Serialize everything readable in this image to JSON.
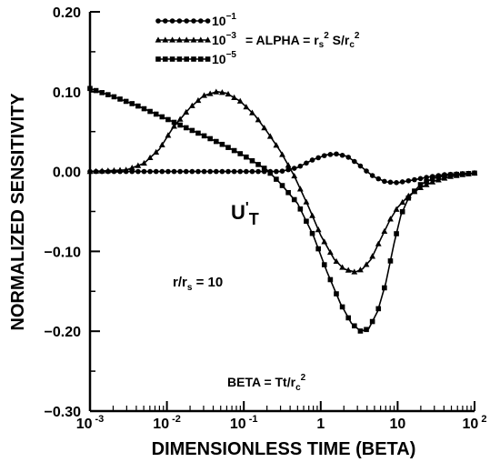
{
  "chart_data": {
    "type": "line",
    "title": "",
    "xlabel": "DIMENSIONLESS TIME (BETA)",
    "ylabel": "NORMALIZED SENSITIVITY",
    "x_scale": "log",
    "xlim": [
      0.001,
      100
    ],
    "ylim": [
      -0.3,
      0.2
    ],
    "grid": false,
    "legend_position": "top-center",
    "x_ticks": [
      {
        "value": 0.001,
        "base": "10",
        "exp": "-3"
      },
      {
        "value": 0.01,
        "base": "10",
        "exp": "-2"
      },
      {
        "value": 0.1,
        "base": "10",
        "exp": "-1"
      },
      {
        "value": 1,
        "base": "1",
        "exp": ""
      },
      {
        "value": 10,
        "base": "10",
        "exp": ""
      },
      {
        "value": 100,
        "base": "10",
        "exp": "2"
      }
    ],
    "y_ticks": [
      {
        "value": 0.2,
        "label": "0.20"
      },
      {
        "value": 0.1,
        "label": "0.10"
      },
      {
        "value": 0.0,
        "label": "0.00"
      },
      {
        "value": -0.1,
        "label": "−0.10"
      },
      {
        "value": -0.2,
        "label": "−0.20"
      },
      {
        "value": -0.3,
        "label": "−0.30"
      }
    ],
    "legend": {
      "entries": [
        {
          "base": "10",
          "exp": "−1",
          "marker": "circle"
        },
        {
          "base": "10",
          "exp": "−3",
          "marker": "triangle"
        },
        {
          "base": "10",
          "exp": "−5",
          "marker": "square"
        }
      ],
      "label": "= ALPHA = r",
      "label_sub": "s",
      "label_sup": "2",
      "label_mid": " S/r",
      "label_sub2": "c",
      "label_sup2": "2"
    },
    "annotations": {
      "curve_main": "U",
      "curve_prime": "'",
      "curve_sub": "T",
      "ratio_text": "r/r",
      "ratio_sub": "s",
      "ratio_value": " = 10",
      "beta_text": "BETA = Tt/r",
      "beta_sub": "c",
      "beta_sup": "2"
    },
    "series": [
      {
        "name": "10^-1",
        "marker": "circle",
        "points": [
          [
            0.001,
            0
          ],
          [
            0.01,
            0
          ],
          [
            0.1,
            0
          ],
          [
            0.3,
            0
          ],
          [
            0.5,
            0.005
          ],
          [
            0.8,
            0.015
          ],
          [
            1.2,
            0.021
          ],
          [
            1.6,
            0.022
          ],
          [
            2.2,
            0.019
          ],
          [
            3,
            0.01
          ],
          [
            4,
            0
          ],
          [
            5,
            -0.007
          ],
          [
            7,
            -0.013
          ],
          [
            10,
            -0.014
          ],
          [
            15,
            -0.011
          ],
          [
            25,
            -0.007
          ],
          [
            40,
            -0.004
          ],
          [
            60,
            -0.003
          ],
          [
            100,
            -0.002
          ]
        ]
      },
      {
        "name": "10^-3",
        "marker": "triangle",
        "points": [
          [
            0.001,
            0
          ],
          [
            0.003,
            0.002
          ],
          [
            0.005,
            0.01
          ],
          [
            0.008,
            0.028
          ],
          [
            0.012,
            0.055
          ],
          [
            0.02,
            0.08
          ],
          [
            0.03,
            0.095
          ],
          [
            0.045,
            0.1
          ],
          [
            0.06,
            0.098
          ],
          [
            0.09,
            0.088
          ],
          [
            0.14,
            0.07
          ],
          [
            0.2,
            0.05
          ],
          [
            0.3,
            0.025
          ],
          [
            0.45,
            -0.005
          ],
          [
            0.7,
            -0.045
          ],
          [
            1,
            -0.08
          ],
          [
            1.5,
            -0.11
          ],
          [
            2,
            -0.122
          ],
          [
            2.8,
            -0.126
          ],
          [
            3.5,
            -0.122
          ],
          [
            4.5,
            -0.11
          ],
          [
            6,
            -0.085
          ],
          [
            8,
            -0.06
          ],
          [
            10,
            -0.045
          ],
          [
            14,
            -0.03
          ],
          [
            20,
            -0.02
          ],
          [
            30,
            -0.012
          ],
          [
            50,
            -0.006
          ],
          [
            100,
            -0.002
          ]
        ]
      },
      {
        "name": "10^-5",
        "marker": "square",
        "points": [
          [
            0.001,
            0.104
          ],
          [
            0.002,
            0.094
          ],
          [
            0.004,
            0.083
          ],
          [
            0.008,
            0.07
          ],
          [
            0.015,
            0.058
          ],
          [
            0.03,
            0.045
          ],
          [
            0.05,
            0.035
          ],
          [
            0.1,
            0.02
          ],
          [
            0.2,
            0.002
          ],
          [
            0.3,
            -0.015
          ],
          [
            0.5,
            -0.04
          ],
          [
            0.8,
            -0.08
          ],
          [
            1.2,
            -0.125
          ],
          [
            1.8,
            -0.165
          ],
          [
            2.5,
            -0.19
          ],
          [
            3.3,
            -0.2
          ],
          [
            4.2,
            -0.197
          ],
          [
            5.5,
            -0.175
          ],
          [
            7,
            -0.14
          ],
          [
            9,
            -0.09
          ],
          [
            11,
            -0.055
          ],
          [
            14,
            -0.032
          ],
          [
            20,
            -0.016
          ],
          [
            30,
            -0.008
          ],
          [
            50,
            -0.004
          ],
          [
            100,
            -0.002
          ]
        ]
      }
    ]
  }
}
